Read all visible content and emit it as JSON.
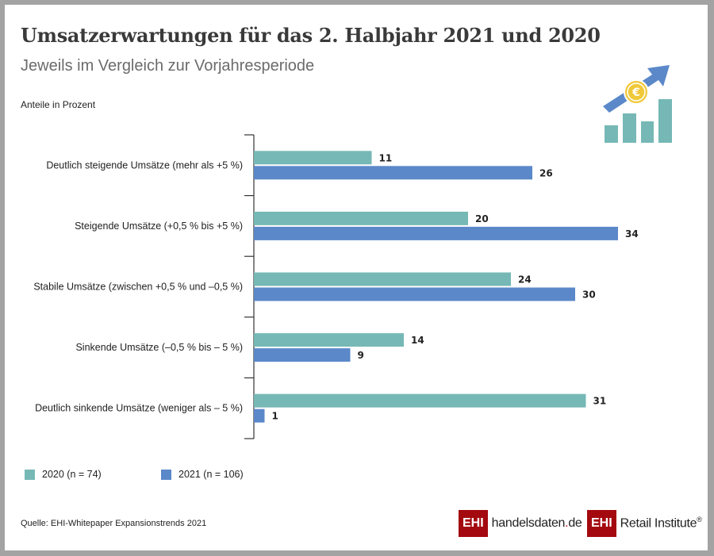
{
  "header": {
    "title": "Umsatzerwartungen für das 2. Halbjahr 2021 und 2020",
    "subtitle": "Jeweils im Vergleich zur Vorjahresperiode",
    "unit_label": "Anteile in Prozent",
    "icon": "growth-chart-euro-arrow-icon"
  },
  "colors": {
    "series_2020": "#76b8b5",
    "series_2021": "#5b88c9",
    "axis": "#333333",
    "coin": "#f0c93a",
    "logo_red": "#a3090f"
  },
  "chart_data": {
    "type": "bar",
    "orientation": "horizontal",
    "title": "Umsatzerwartungen für das 2. Halbjahr 2021 und 2020",
    "subtitle": "Jeweils im Vergleich zur Vorjahresperiode",
    "xlabel": "Anteile in Prozent",
    "ylabel": "",
    "xlim": [
      0,
      35
    ],
    "grid": false,
    "legend_position": "bottom-left",
    "categories": [
      "Deutlich steigende Umsätze (mehr als +5 %)",
      "Steigende Umsätze (+0,5 % bis +5 %)",
      "Stabile Umsätze (zwischen +0,5 % und –0,5 %)",
      "Sinkende Umsätze (–0,5 % bis – 5 %)",
      "Deutlich sinkende Umsätze (weniger als – 5 %)"
    ],
    "series": [
      {
        "name": "2020 (n = 74)",
        "values": [
          11,
          20,
          24,
          14,
          31
        ]
      },
      {
        "name": "2021 (n = 106)",
        "values": [
          26,
          34,
          30,
          9,
          1
        ]
      }
    ]
  },
  "legend": {
    "items": [
      {
        "label": "2020 (n = 74)"
      },
      {
        "label": "2021 (n = 106)"
      }
    ]
  },
  "footer": {
    "source": "Quelle: EHI-Whitepaper Expansionstrends 2021",
    "logo1_box": "EHI",
    "logo1_text_a": "handelsdaten",
    "logo1_text_dot": ".",
    "logo1_text_b": "de",
    "logo2_box": "EHI",
    "logo2_text": "Retail Institute",
    "logo2_reg": "®"
  }
}
